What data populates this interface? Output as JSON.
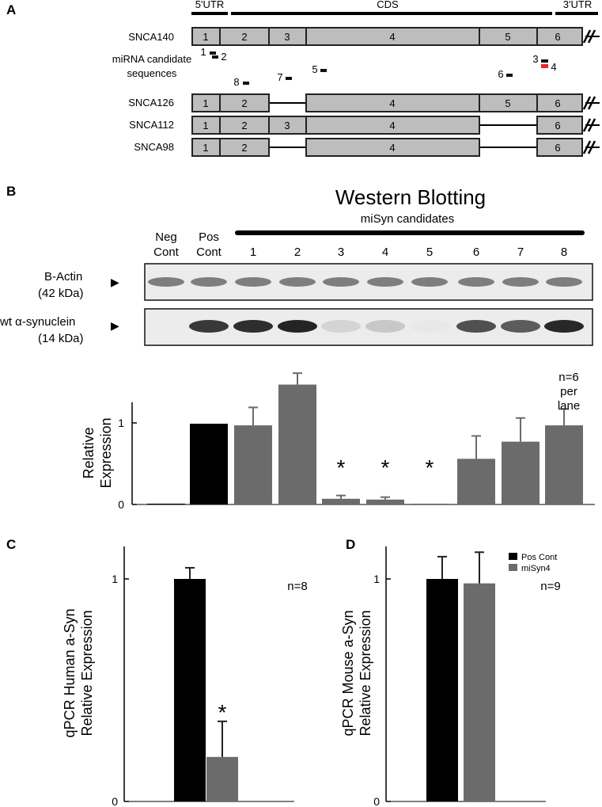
{
  "panel_a": {
    "letter": "A",
    "regions": [
      "5'UTR",
      "CDS",
      "3'UTR"
    ],
    "transcripts": [
      {
        "name": "SNCA140",
        "exons": [
          "1",
          "2",
          "3",
          "4",
          "5",
          "6"
        ]
      },
      {
        "name": "SNCA126",
        "exons": [
          "1",
          "2",
          "4",
          "5",
          "6"
        ]
      },
      {
        "name": "SNCA112",
        "exons": [
          "1",
          "2",
          "3",
          "4",
          "6"
        ]
      },
      {
        "name": "SNCA98",
        "exons": [
          "1",
          "2",
          "4",
          "6"
        ]
      }
    ],
    "mirna_label_line1": "miRNA candidate",
    "mirna_label_line2": "sequences",
    "candidates": [
      "1",
      "2",
      "3",
      "4",
      "5",
      "6",
      "7",
      "8"
    ],
    "colors": {
      "exon": "#bdbdbd",
      "highlight": "#e8262a"
    }
  },
  "panel_b": {
    "letter": "B",
    "title": "Western Blotting",
    "group_label": "miSyn candidates",
    "lane_labels_top": [
      "Neg",
      "Pos"
    ],
    "lane_labels_bottom": [
      "Cont",
      "Cont"
    ],
    "lane_numbers": [
      "1",
      "2",
      "3",
      "4",
      "5",
      "6",
      "7",
      "8"
    ],
    "blot_labels": [
      {
        "line1": "B-Actin",
        "line2": "(42 kDa)"
      },
      {
        "line1": "wt α-synuclein",
        "line2": "(14 kDa)"
      }
    ],
    "arrow": "▶",
    "actin_intensity": [
      0.55,
      0.55,
      0.55,
      0.55,
      0.55,
      0.55,
      0.55,
      0.55,
      0.55,
      0.55
    ],
    "syn_intensity": [
      0.0,
      0.9,
      0.95,
      1.0,
      0.12,
      0.18,
      0.02,
      0.78,
      0.72,
      0.98
    ],
    "n_label": [
      "n=6",
      "per",
      "lane"
    ]
  },
  "panel_c": {
    "letter": "C",
    "n_label": "n=8"
  },
  "panel_d": {
    "letter": "D",
    "n_label": "n=9"
  },
  "chart_data": [
    {
      "type": "bar",
      "ylabel": "Relative Expression",
      "ylim": [
        0,
        1.6
      ],
      "yticks": [
        "0",
        "1"
      ],
      "categories": [
        "Neg Cont",
        "Pos Cont",
        "1",
        "2",
        "3",
        "4",
        "5",
        "6",
        "7",
        "8"
      ],
      "values": [
        0.01,
        0.99,
        0.97,
        1.47,
        0.07,
        0.06,
        0.01,
        0.56,
        0.77,
        0.97
      ],
      "errors": [
        0.0,
        0.0,
        0.22,
        0.14,
        0.04,
        0.03,
        0.0,
        0.28,
        0.29,
        0.2
      ],
      "colors": [
        "#000000",
        "#000000",
        "#6b6b6b",
        "#6b6b6b",
        "#6b6b6b",
        "#6b6b6b",
        "#6b6b6b",
        "#6b6b6b",
        "#6b6b6b",
        "#6b6b6b"
      ],
      "significance": [
        "",
        "",
        "",
        "",
        "*",
        "*",
        "*",
        "",
        "",
        ""
      ]
    },
    {
      "type": "bar",
      "ylabel": "qPCR Human a-Syn Relative Expression",
      "ylim": [
        0,
        1.15
      ],
      "yticks": [
        "0",
        "1"
      ],
      "series": [
        {
          "name": "Pos Cont",
          "values": [
            1.0
          ],
          "error": 0.05,
          "color": "#000000"
        },
        {
          "name": "miSyn4",
          "values": [
            0.2
          ],
          "error": 0.16,
          "color": "#6b6b6b",
          "significance": "*"
        }
      ]
    },
    {
      "type": "bar",
      "ylabel": "qPCR Mouse a-Syn Relative Expression",
      "ylim": [
        0,
        1.15
      ],
      "yticks": [
        "0",
        "1"
      ],
      "legend": "top-right",
      "series": [
        {
          "name": "Pos Cont",
          "values": [
            1.0
          ],
          "error": 0.1,
          "color": "#000000"
        },
        {
          "name": "miSyn4",
          "values": [
            0.98
          ],
          "error": 0.14,
          "color": "#6b6b6b"
        }
      ]
    }
  ]
}
